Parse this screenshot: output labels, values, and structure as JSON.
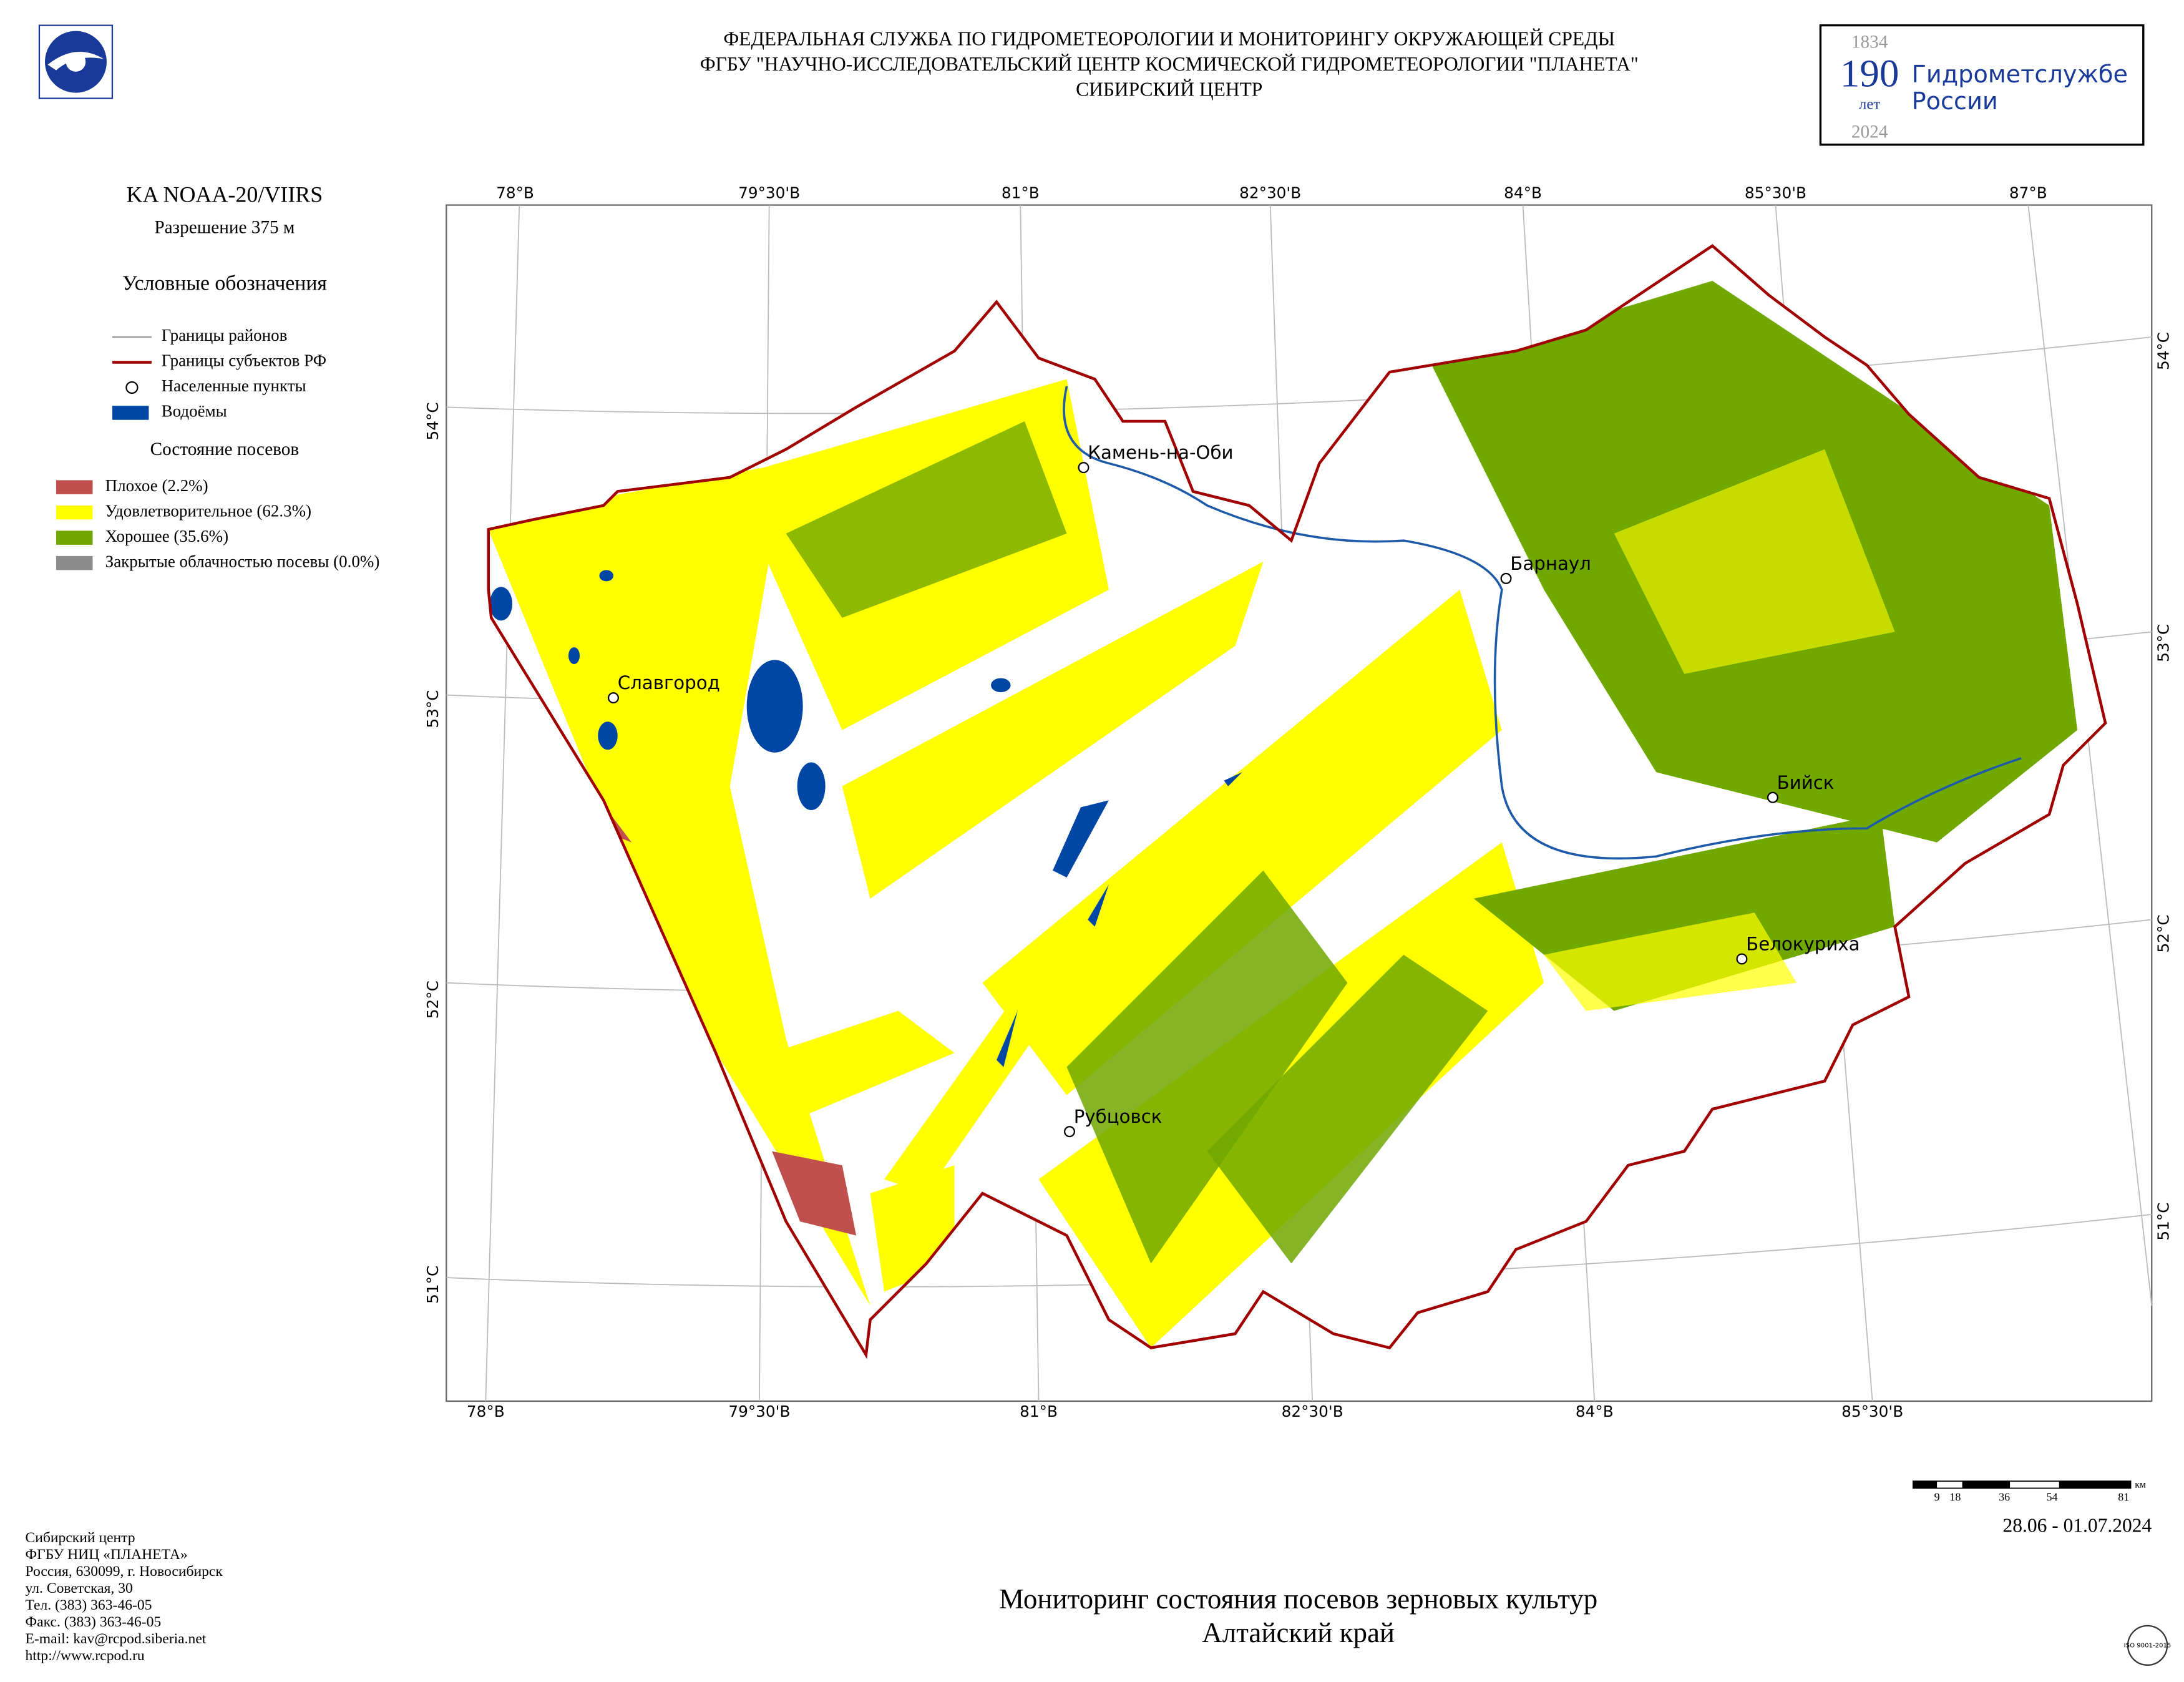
{
  "header": {
    "lines": [
      "ФЕДЕРАЛЬНАЯ СЛУЖБА ПО ГИДРОМЕТЕОРОЛОГИИ И МОНИТОРИНГУ ОКРУЖАЮЩЕЙ СРЕДЫ",
      "ФГБУ \"НАУЧНО-ИССЛЕДОВАТЕЛЬСКИЙ ЦЕНТР КОСМИЧЕСКОЙ ГИДРОМЕТЕОРОЛОГИИ \"ПЛАНЕТА\"",
      "СИБИРСКИЙ ЦЕНТР"
    ]
  },
  "anniversary": {
    "top": "1834",
    "big": "190",
    "small": "лет",
    "text1": "Гидрометслужбе",
    "text2": "России",
    "bottom": "2024"
  },
  "sidebar": {
    "satellite": "KA NOAA-20/VIIRS",
    "resolution": "Разрешение 375 м",
    "legend_title": "Условные обозначения",
    "legend": [
      {
        "label": "Границы районов",
        "symbol": "line",
        "color": "#999999"
      },
      {
        "label": "Границы субъектов РФ",
        "symbol": "line",
        "color": "#a00000"
      },
      {
        "label": "Населенные пункты",
        "symbol": "circle",
        "color": "#000000"
      },
      {
        "label": "Водоёмы",
        "symbol": "rect",
        "color": "#0046a5"
      }
    ],
    "crop_title": "Состояние посевов",
    "crops": [
      {
        "label": "Плохое (2.2%)",
        "color": "#c0504d"
      },
      {
        "label": "Удовлетворительное (62.3%)",
        "color": "#ffff00"
      },
      {
        "label": "Хорошее (35.6%)",
        "color": "#70a800"
      },
      {
        "label": "Закрытые облачностью посевы (0.0%)",
        "color": "#8c8c8c"
      }
    ]
  },
  "map": {
    "top_labels": [
      "78°В",
      "79°30'В",
      "81°В",
      "82°30'В",
      "84°В",
      "85°30'В",
      "87°В"
    ],
    "bottom_labels": [
      "78°В",
      "79°30'В",
      "81°В",
      "82°30'В",
      "84°В",
      "85°30'В"
    ],
    "left_labels": [
      "54°С",
      "53°С",
      "52°С",
      "51°С"
    ],
    "right_labels": [
      "54°С",
      "53°С",
      "52°С",
      "51°С"
    ],
    "cities": [
      "Камень-на-Оби",
      "Барнаул",
      "Славгород",
      "Бийск",
      "Белокуриха",
      "Рубцовск"
    ]
  },
  "scale_bar": {
    "labels": [
      "9",
      "18",
      "36",
      "54",
      "81"
    ],
    "unit": "км"
  },
  "date": "28.06 - 01.07.2024",
  "footer": [
    "Сибирский центр",
    "ФГБУ НИЦ «ПЛАНЕТА»",
    "Россия, 630099, г. Новосибирск",
    "ул. Советская, 30",
    "Тел. (383) 363-46-05",
    "Факс. (383) 363-46-05",
    "E-mail: kav@rcpod.siberia.net",
    "http://www.rcpod.ru"
  ],
  "title": [
    "Мониторинг состояния посевов зерновых культур",
    "Алтайский край"
  ],
  "iso": "ISO 9001-2015"
}
